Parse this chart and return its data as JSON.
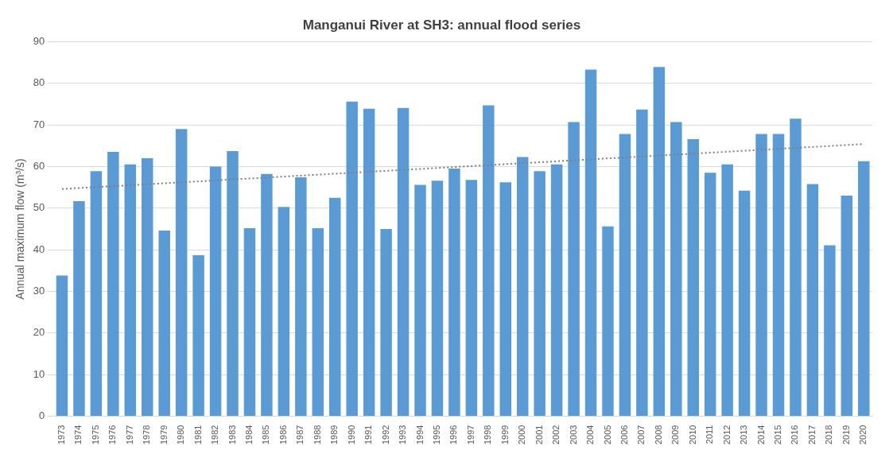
{
  "chart_data": {
    "type": "bar",
    "title": "Manganui River at SH3: annual flood series",
    "ylabel": "Annual maximum flow (m³/s)",
    "categories": [
      "1973",
      "1974",
      "1975",
      "1976",
      "1977",
      "1978",
      "1979",
      "1980",
      "1981",
      "1982",
      "1983",
      "1984",
      "1985",
      "1986",
      "1987",
      "1988",
      "1989",
      "1990",
      "1991",
      "1992",
      "1993",
      "1994",
      "1995",
      "1996",
      "1997",
      "1998",
      "1999",
      "2000",
      "2001",
      "2002",
      "2003",
      "2004",
      "2005",
      "2006",
      "2007",
      "2008",
      "2009",
      "2010",
      "2011",
      "2012",
      "2013",
      "2014",
      "2015",
      "2016",
      "2017",
      "2018",
      "2019",
      "2020"
    ],
    "series": [
      {
        "color": "#5b9bd5",
        "values": [
          33.8,
          51.7,
          58.9,
          63.5,
          60.5,
          62,
          44.6,
          69,
          38.7,
          60,
          63.7,
          45.2,
          58.2,
          50.3,
          57.4,
          45.2,
          52.5,
          75.6,
          73.9,
          45,
          74.1,
          55.6,
          56.6,
          59.5,
          56.8,
          74.7,
          56.2,
          62.3,
          58.9,
          60.5,
          70.7,
          83.3,
          45.6,
          67.8,
          73.7,
          83.9,
          70.7,
          66.6,
          58.5,
          60.5,
          54.2,
          67.8,
          67.8,
          71.5,
          55.8,
          41.1,
          53,
          61.3
        ]
      },
      {
        "type": "line",
        "color": "#7f7f7f",
        "line_style": "dotted",
        "marker": "none",
        "values": [
          54.6,
          null,
          null,
          null,
          null,
          null,
          null,
          null,
          null,
          null,
          null,
          null,
          null,
          null,
          null,
          null,
          null,
          null,
          null,
          null,
          null,
          null,
          null,
          null,
          null,
          null,
          null,
          null,
          null,
          null,
          null,
          null,
          null,
          null,
          null,
          null,
          null,
          null,
          null,
          null,
          null,
          null,
          null,
          null,
          null,
          null,
          null,
          65.4
        ]
      }
    ],
    "ylim": [
      0,
      90
    ],
    "yticks": [
      0,
      10,
      20,
      30,
      40,
      50,
      60,
      70,
      80,
      90
    ],
    "grid": "y",
    "legend": false
  }
}
